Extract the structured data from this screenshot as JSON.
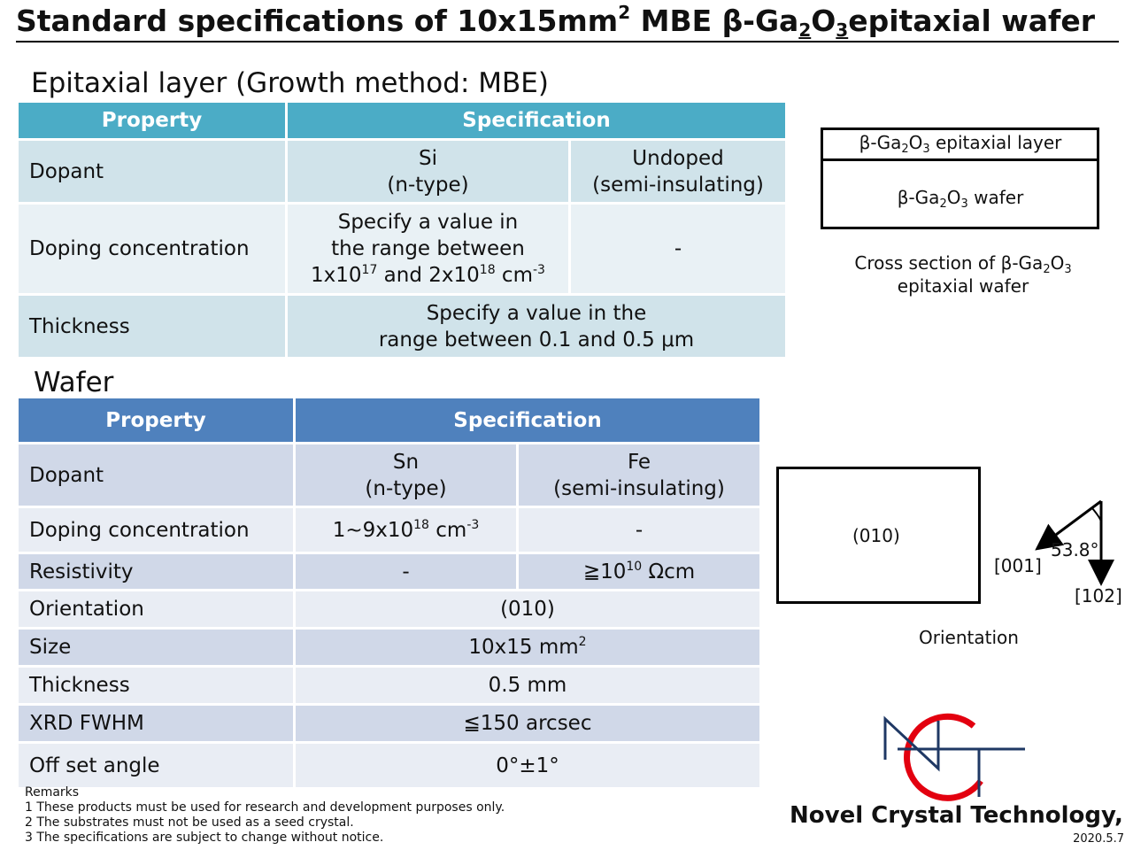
{
  "title": {
    "part1": "Standard specifications of 10x15mm",
    "sup1": "2",
    "part2": " MBE β-Ga",
    "sub1": "2",
    "part3": "O",
    "sub2": "3",
    "part4": "epitaxial wafer"
  },
  "epitaxial": {
    "heading": "Epitaxial layer (Growth method: MBE)",
    "header_property": "Property",
    "header_spec": "Specification",
    "dopant_label": "Dopant",
    "dopant_si_1": "Si",
    "dopant_si_2": "(n-type)",
    "dopant_undoped_1": "Undoped",
    "dopant_undoped_2": "(semi-insulating)",
    "doping_label": "Doping concentration",
    "doping_line1": "Specify a value in",
    "doping_line2": "the range between",
    "doping_line3a": "1x10",
    "doping_sup1": "17",
    "doping_line3b": " and 2x10",
    "doping_sup2": "18",
    "doping_line3c": " cm",
    "doping_sup3": "-3",
    "doping_undoped": "-",
    "thickness_label": "Thickness",
    "thickness_line1": "Specify a value in the",
    "thickness_line2": "range between 0.1 and 0.5 μm"
  },
  "cross_section": {
    "layer_a": "β-Ga",
    "layer_sub1": "2",
    "layer_b": "O",
    "layer_sub2": "3",
    "layer_c": " epitaxial layer",
    "wafer_a": "β-Ga",
    "wafer_sub1": "2",
    "wafer_b": "O",
    "wafer_sub2": "3",
    "wafer_c": " wafer",
    "caption_a": "Cross section of β-Ga",
    "caption_sub1": "2",
    "caption_b": "O",
    "caption_sub2": "3",
    "caption_line2": "epitaxial wafer"
  },
  "wafer": {
    "heading": "Wafer",
    "header_property": "Property",
    "header_spec": "Specification",
    "rows": {
      "dopant_label": "Dopant",
      "dopant_sn_1": "Sn",
      "dopant_sn_2": "(n-type)",
      "dopant_fe_1": "Fe",
      "dopant_fe_2": "(semi-insulating)",
      "doping_label": "Doping concentration",
      "doping_sn_a": "1~9x10",
      "doping_sn_sup": "18",
      "doping_sn_b": " cm",
      "doping_sn_sup2": "-3",
      "doping_fe": "-",
      "resistivity_label": "Resistivity",
      "resistivity_sn": "-",
      "resistivity_fe_a": "≧10",
      "resistivity_fe_sup": "10",
      "resistivity_fe_b": " Ωcm",
      "orientation_label": "Orientation",
      "orientation_value": "(010)",
      "size_label": "Size",
      "size_value_a": "10x15 mm",
      "size_value_sup": "2",
      "thickness_label": "Thickness",
      "thickness_value": "0.5 mm",
      "xrd_label": "XRD FWHM",
      "xrd_value": "≦150 arcsec",
      "offset_label": "Off set angle",
      "offset_value": "0°±1°"
    }
  },
  "orientation_diagram": {
    "plane": "(010)",
    "angle": "53.8°",
    "dir_001": "[001]",
    "dir_102": "[102]",
    "caption": "Orientation"
  },
  "remarks": {
    "heading": "Remarks",
    "items": [
      "1 These products must be used for research and development purposes only.",
      "2 The substrates must not be used as a seed crystal.",
      "3 The specifications are subject to change without notice."
    ]
  },
  "company": "Novel Crystal Technology, Inc.",
  "date": "2020.5.7",
  "colors": {
    "epi_header": "#4bacc6",
    "wafer_header": "#4f81bd",
    "logo_red": "#e3000f",
    "logo_navy": "#1f3864"
  }
}
